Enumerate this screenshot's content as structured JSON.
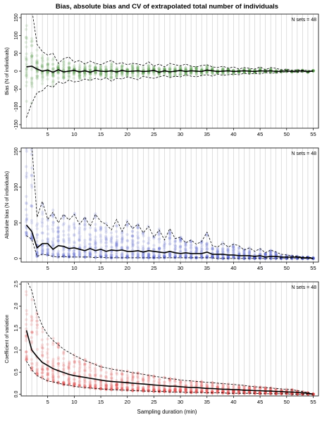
{
  "figure": {
    "title": "Bias, absolute bias and CV of extrapolated total number of individuals",
    "xlabel": "Sampling duration (min)"
  },
  "chart_data": [
    {
      "type": "line",
      "panel": "bias",
      "ylabel": "Bias (N of individuals)",
      "annotation": "N sets = 48",
      "xlim": [
        0,
        56
      ],
      "ylim": [
        -160,
        160
      ],
      "xticks": [
        5,
        10,
        15,
        20,
        25,
        30,
        35,
        40,
        45,
        50,
        55
      ],
      "yticks": [
        -150,
        -100,
        -50,
        0,
        50,
        100,
        150
      ],
      "grid": true,
      "point_color": "#5a9e4a",
      "x": [
        1,
        2,
        3,
        4,
        5,
        6,
        7,
        8,
        9,
        10,
        11,
        12,
        13,
        14,
        15,
        16,
        17,
        18,
        19,
        20,
        21,
        22,
        23,
        24,
        25,
        26,
        27,
        28,
        29,
        30,
        31,
        32,
        33,
        34,
        35,
        36,
        37,
        38,
        39,
        40,
        41,
        42,
        43,
        44,
        45,
        46,
        47,
        48,
        49,
        50,
        51,
        52,
        53,
        54,
        55
      ],
      "series": [
        {
          "name": "mean",
          "values": [
            12,
            14,
            6,
            0,
            3,
            -3,
            4,
            -2,
            0,
            2,
            -2,
            1,
            -3,
            2,
            0,
            -1,
            1,
            -2,
            2,
            -1,
            0,
            1,
            -1,
            0,
            2,
            -3,
            1,
            -2,
            0,
            2,
            -1,
            1,
            0,
            -1,
            3,
            1,
            -1,
            0,
            1,
            -1,
            0,
            1,
            0,
            -1,
            1,
            0,
            1,
            -1,
            0,
            1,
            -1,
            0,
            1,
            -2,
            1
          ]
        },
        {
          "name": "upper",
          "values": [
            200,
            175,
            75,
            55,
            45,
            50,
            22,
            35,
            40,
            25,
            30,
            20,
            28,
            22,
            18,
            25,
            30,
            20,
            24,
            18,
            22,
            20,
            16,
            26,
            14,
            20,
            12,
            22,
            18,
            15,
            20,
            14,
            12,
            16,
            18,
            12,
            10,
            14,
            8,
            12,
            6,
            10,
            8,
            6,
            12,
            4,
            10,
            8,
            4,
            6,
            2,
            4,
            3,
            2,
            1
          ]
        },
        {
          "name": "lower",
          "values": [
            -130,
            -90,
            -60,
            -55,
            -40,
            -45,
            -30,
            -35,
            -25,
            -30,
            -28,
            -22,
            -26,
            -20,
            -24,
            -18,
            -28,
            -20,
            -22,
            -16,
            -20,
            -24,
            -14,
            -18,
            -20,
            -16,
            -12,
            -18,
            -14,
            -16,
            -10,
            -14,
            -16,
            -12,
            -10,
            -14,
            -8,
            -12,
            -10,
            -8,
            -10,
            -6,
            -8,
            -6,
            -8,
            -4,
            -6,
            -5,
            -3,
            -2,
            -2,
            -3,
            -2,
            -1,
            -1
          ]
        }
      ]
    },
    {
      "type": "line",
      "panel": "absolute_bias",
      "ylabel": "Absolute bias (N of individuals)",
      "annotation": "N sets = 48",
      "xlim": [
        0,
        56
      ],
      "ylim": [
        -5,
        155
      ],
      "xticks": [
        5,
        10,
        15,
        20,
        25,
        30,
        35,
        40,
        45,
        50,
        55
      ],
      "yticks": [
        0,
        50,
        100,
        150
      ],
      "grid": true,
      "point_color": "#5060d0",
      "x": [
        1,
        2,
        3,
        4,
        5,
        6,
        7,
        8,
        9,
        10,
        11,
        12,
        13,
        14,
        15,
        16,
        17,
        18,
        19,
        20,
        21,
        22,
        23,
        24,
        25,
        26,
        27,
        28,
        29,
        30,
        31,
        32,
        33,
        34,
        35,
        36,
        37,
        38,
        39,
        40,
        41,
        42,
        43,
        44,
        45,
        46,
        47,
        48,
        49,
        50,
        51,
        52,
        53,
        54,
        55
      ],
      "series": [
        {
          "name": "mean",
          "values": [
            47,
            38,
            15,
            21,
            21,
            13,
            18,
            17,
            14,
            15,
            13,
            11,
            14,
            11,
            13,
            10,
            12,
            11,
            12,
            10,
            10,
            11,
            9,
            11,
            10,
            9,
            8,
            10,
            8,
            7,
            8,
            7,
            7,
            7,
            9,
            6,
            6,
            6,
            5,
            5,
            4,
            4,
            4,
            3,
            4,
            2,
            3,
            3,
            2,
            2,
            2,
            2,
            1,
            1,
            0
          ]
        },
        {
          "name": "upper",
          "values": [
            200,
            160,
            58,
            80,
            55,
            65,
            50,
            62,
            54,
            62,
            48,
            58,
            45,
            62,
            52,
            48,
            40,
            55,
            38,
            52,
            42,
            48,
            36,
            45,
            30,
            40,
            26,
            42,
            28,
            30,
            22,
            26,
            20,
            24,
            37,
            18,
            16,
            22,
            16,
            20,
            18,
            12,
            15,
            10,
            14,
            8,
            12,
            9,
            6,
            5,
            4,
            3,
            2,
            2,
            1
          ]
        },
        {
          "name": "lower",
          "values": [
            32,
            27,
            3,
            6,
            5,
            3,
            2,
            3,
            2,
            2,
            2,
            2,
            2,
            1,
            2,
            1,
            1,
            1,
            1,
            1,
            1,
            1,
            1,
            1,
            1,
            1,
            1,
            1,
            1,
            1,
            1,
            1,
            1,
            1,
            1,
            1,
            0,
            0,
            0,
            0,
            0,
            0,
            0,
            0,
            0,
            0,
            0,
            0,
            0,
            0,
            0,
            0,
            0,
            0,
            0
          ]
        }
      ]
    },
    {
      "type": "line",
      "panel": "cv",
      "ylabel": "Coefficient of variation",
      "annotation": "N sets = 48",
      "xlim": [
        0,
        56
      ],
      "ylim": [
        -0.04,
        2.55
      ],
      "xticks": [
        5,
        10,
        15,
        20,
        25,
        30,
        35,
        40,
        45,
        50,
        55
      ],
      "yticks": [
        0.0,
        0.5,
        1.0,
        1.5,
        2.0,
        2.5
      ],
      "grid": true,
      "point_color": "#e04545",
      "x": [
        1,
        2,
        3,
        4,
        5,
        6,
        7,
        8,
        9,
        10,
        11,
        12,
        13,
        14,
        15,
        16,
        17,
        18,
        19,
        20,
        21,
        22,
        23,
        24,
        25,
        26,
        27,
        28,
        29,
        30,
        31,
        32,
        33,
        34,
        35,
        36,
        37,
        38,
        39,
        40,
        41,
        42,
        43,
        44,
        45,
        46,
        47,
        48,
        49,
        50,
        51,
        52,
        53,
        54,
        55
      ],
      "series": [
        {
          "name": "mean",
          "values": [
            1.45,
            1.0,
            0.85,
            0.72,
            0.65,
            0.58,
            0.53,
            0.49,
            0.45,
            0.42,
            0.4,
            0.38,
            0.36,
            0.34,
            0.32,
            0.3,
            0.29,
            0.28,
            0.27,
            0.26,
            0.25,
            0.24,
            0.23,
            0.22,
            0.21,
            0.2,
            0.19,
            0.18,
            0.18,
            0.17,
            0.16,
            0.15,
            0.15,
            0.14,
            0.13,
            0.13,
            0.12,
            0.11,
            0.11,
            0.1,
            0.1,
            0.09,
            0.09,
            0.08,
            0.08,
            0.07,
            0.07,
            0.06,
            0.06,
            0.05,
            0.05,
            0.04,
            0.03,
            0.02,
            0.0
          ]
        },
        {
          "name": "upper",
          "values": [
            2.6,
            2.35,
            1.85,
            1.55,
            1.35,
            1.22,
            1.12,
            1.02,
            0.95,
            0.88,
            0.82,
            0.76,
            0.72,
            0.67,
            0.62,
            0.6,
            0.57,
            0.55,
            0.53,
            0.51,
            0.49,
            0.47,
            0.45,
            0.43,
            0.41,
            0.39,
            0.37,
            0.35,
            0.34,
            0.32,
            0.31,
            0.3,
            0.29,
            0.28,
            0.27,
            0.26,
            0.25,
            0.24,
            0.23,
            0.22,
            0.21,
            0.2,
            0.18,
            0.17,
            0.16,
            0.15,
            0.14,
            0.13,
            0.12,
            0.11,
            0.1,
            0.08,
            0.06,
            0.04,
            0.0
          ]
        },
        {
          "name": "lower",
          "values": [
            0.75,
            0.55,
            0.42,
            0.36,
            0.3,
            0.28,
            0.25,
            0.22,
            0.2,
            0.18,
            0.16,
            0.15,
            0.14,
            0.13,
            0.12,
            0.11,
            0.1,
            0.1,
            0.09,
            0.09,
            0.08,
            0.08,
            0.07,
            0.07,
            0.06,
            0.06,
            0.06,
            0.05,
            0.05,
            0.05,
            0.04,
            0.04,
            0.04,
            0.04,
            0.03,
            0.03,
            0.03,
            0.03,
            0.02,
            0.02,
            0.02,
            0.02,
            0.02,
            0.02,
            0.01,
            0.01,
            0.01,
            0.01,
            0.01,
            0.01,
            0.0,
            0.0,
            0.0,
            0.0,
            0.0
          ]
        }
      ]
    }
  ]
}
